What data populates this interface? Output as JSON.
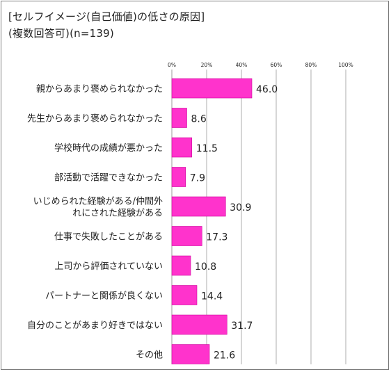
{
  "title": {
    "line1": "[セルフイメージ(自己価値)の低さの原因]",
    "line2": "(複数回答可)(n=139)"
  },
  "colors": {
    "bar": "#ff33cc",
    "bar_stroke": "#cc0099",
    "grid": "#9a9a9a"
  },
  "chart_data": {
    "type": "bar",
    "orientation": "horizontal",
    "title": "[セルフイメージ(自己価値)の低さの原因]",
    "subtitle": "(複数回答可)(n=139)",
    "xlim": [
      0,
      100
    ],
    "x_ticks": [
      "0%",
      "20%",
      "40%",
      "60%",
      "80%",
      "100%"
    ],
    "grid": true,
    "categories": [
      "親からあまり褒められなかった",
      "先生からあまり褒められなかった",
      "学校時代の成績が悪かった",
      "部活動で活躍できなかった",
      "いじめられた経験がある/仲間外れにされた経験がある",
      "仕事で失敗したことがある",
      "上司から評価されていない",
      "パートナーと関係が良くない",
      "自分のことがあまり好きではない",
      "その他"
    ],
    "category_lines": [
      [
        "親からあまり褒められなかった"
      ],
      [
        "先生からあまり褒められなかった"
      ],
      [
        "学校時代の成績が悪かった"
      ],
      [
        "部活動で活躍できなかった"
      ],
      [
        "いじめられた経験がある/仲間外",
        "れにされた経験がある"
      ],
      [
        "仕事で失敗したことがある"
      ],
      [
        "上司から評価されていない"
      ],
      [
        "パートナーと関係が良くない"
      ],
      [
        "自分のことがあまり好きではない"
      ],
      [
        "その他"
      ]
    ],
    "values": [
      46.0,
      8.6,
      11.5,
      7.9,
      30.9,
      17.3,
      10.8,
      14.4,
      31.7,
      21.6
    ],
    "value_labels": [
      "46.0",
      "8.6",
      "11.5",
      "7.9",
      "30.9",
      "17.3",
      "10.8",
      "14.4",
      "31.7",
      "21.6"
    ]
  }
}
